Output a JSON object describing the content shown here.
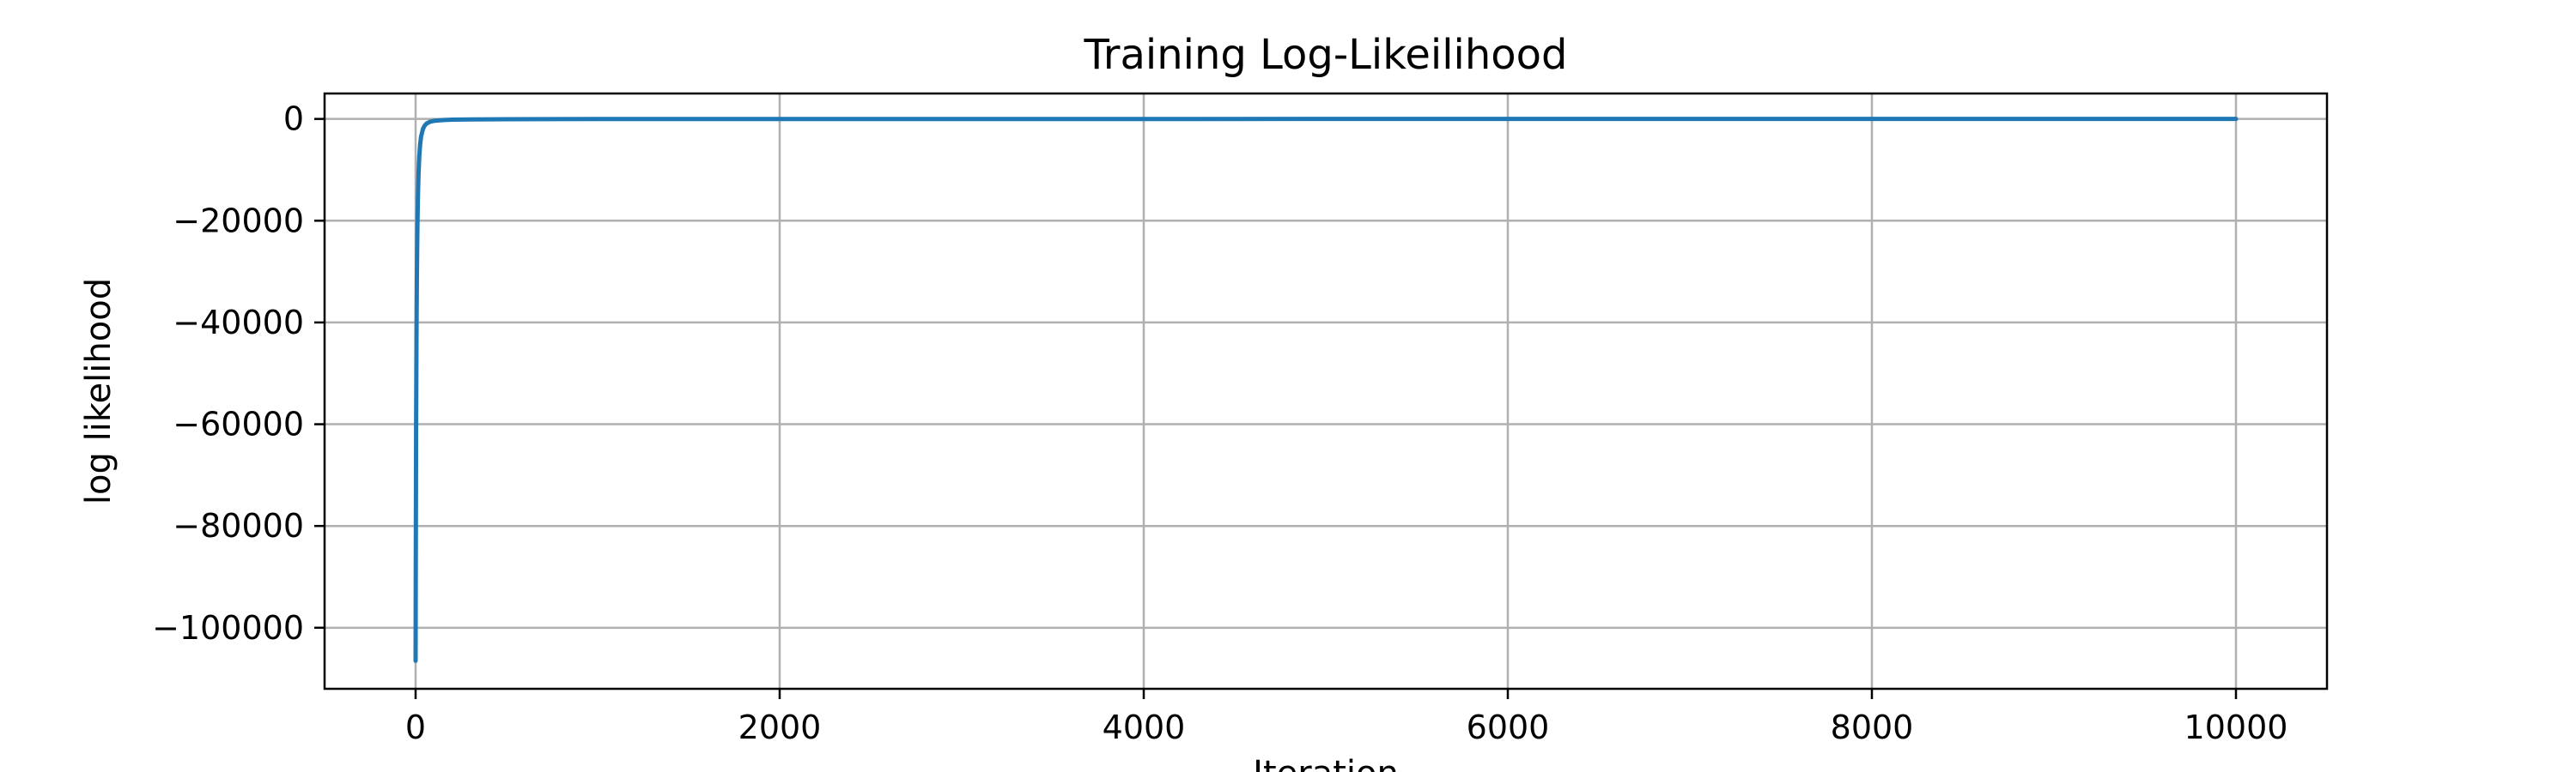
{
  "chart_data": {
    "type": "line",
    "title": "Training Log-Likeilihood",
    "xlabel": "Iteration",
    "ylabel": "log likelihood",
    "xlim": [
      -500,
      10500
    ],
    "ylim": [
      -112000,
      5000
    ],
    "xticks": [
      0,
      2000,
      4000,
      6000,
      8000,
      10000
    ],
    "xtick_labels": [
      "0",
      "2000",
      "4000",
      "6000",
      "8000",
      "10000"
    ],
    "yticks": [
      0,
      -20000,
      -40000,
      -60000,
      -80000,
      -100000
    ],
    "ytick_labels": [
      "0",
      "−20000",
      "−40000",
      "−60000",
      "−80000",
      "−100000"
    ],
    "grid": true,
    "series": [
      {
        "color": "#1f77b4",
        "x": [
          0,
          1,
          2,
          3,
          5,
          7,
          10,
          13,
          16,
          20,
          25,
          30,
          40,
          50,
          60,
          80,
          100,
          150,
          200,
          300,
          500,
          1000,
          2000,
          4000,
          6000,
          8000,
          10000
        ],
        "y": [
          -106500,
          -88000,
          -72000,
          -59000,
          -42000,
          -31000,
          -21000,
          -15000,
          -11000,
          -7500,
          -5000,
          -3500,
          -2000,
          -1300,
          -900,
          -550,
          -380,
          -220,
          -150,
          -90,
          -50,
          -25,
          -12,
          -6,
          -4,
          -3,
          -2
        ]
      }
    ]
  }
}
